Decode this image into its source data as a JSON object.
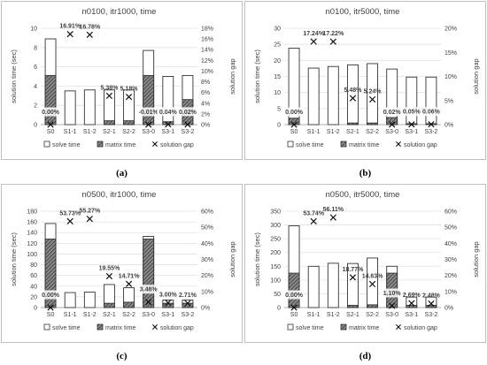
{
  "colors": {
    "bar_stroke": "#333333",
    "matrix_fill": "#5a5a5a",
    "grid": "#e2e2e2",
    "frame": "#bfbfbf",
    "text": "#404040",
    "label": "#404040"
  },
  "legend_labels": [
    "solve time",
    "matrix time",
    "solution gap"
  ],
  "chart_data": [
    {
      "type": "bar",
      "title": "n0100, itr1000, time",
      "caption": "(a)",
      "ylabel": "solution time (sec)",
      "y2label": "solution gap",
      "categories": [
        "S0",
        "S1-1",
        "S1-2",
        "S2-1",
        "S2-2",
        "S3-0",
        "S3-1",
        "S3-2"
      ],
      "ylim": [
        0,
        10
      ],
      "yticks": [
        0,
        2,
        4,
        6,
        8,
        10
      ],
      "y2lim": [
        0,
        18
      ],
      "y2ticks": [
        0,
        2,
        4,
        6,
        8,
        10,
        12,
        14,
        16,
        18
      ],
      "y2suffix": "%",
      "series": [
        {
          "name": "solve time",
          "values": [
            8.9,
            3.5,
            3.6,
            3.6,
            3.6,
            7.7,
            5.0,
            5.1
          ]
        },
        {
          "name": "matrix time",
          "values": [
            5.1,
            0,
            0,
            0.4,
            0.4,
            5.1,
            0.3,
            2.6
          ]
        },
        {
          "name": "solution gap",
          "values": [
            0.0,
            16.91,
            16.78,
            5.38,
            5.18,
            -0.01,
            0.04,
            0.02
          ]
        }
      ],
      "gap_labels": [
        "0.00%",
        "16.91%",
        "16.78%",
        "5.38%",
        "5.18%",
        "-0.01%",
        "0.04%",
        "0.02%"
      ],
      "label_mode": [
        1,
        0,
        0,
        0,
        0,
        1,
        1,
        1
      ]
    },
    {
      "type": "bar",
      "title": "n0100, itr5000, time",
      "caption": "(b)",
      "ylabel": "solution time (sec)",
      "y2label": "solution gap",
      "categories": [
        "S0",
        "S1-1",
        "S1-2",
        "S2-1",
        "S2-2",
        "S3-0",
        "S3-1",
        "S3-2"
      ],
      "ylim": [
        0,
        30
      ],
      "yticks": [
        0,
        5,
        10,
        15,
        20,
        25,
        30
      ],
      "y2lim": [
        0,
        20
      ],
      "y2ticks": [
        0,
        5,
        10,
        15,
        20
      ],
      "y2suffix": "%",
      "series": [
        {
          "name": "solve time",
          "values": [
            23.8,
            17.6,
            18.1,
            18.6,
            19.0,
            17.3,
            14.8,
            14.8
          ]
        },
        {
          "name": "matrix time",
          "values": [
            2.0,
            0,
            0,
            0.5,
            0.5,
            2.2,
            0.3,
            0.3
          ]
        },
        {
          "name": "solution gap",
          "values": [
            0.0,
            17.24,
            17.22,
            5.48,
            5.24,
            0.02,
            0.05,
            0.06
          ]
        }
      ],
      "gap_labels": [
        "0.00%",
        "17.24%",
        "17.22%",
        "5.48%",
        "5.24%",
        "0.02%",
        "0.05%",
        "0.06%"
      ],
      "label_mode": [
        1,
        0,
        0,
        0,
        0,
        1,
        1,
        1
      ]
    },
    {
      "type": "bar",
      "title": "n0500, itr1000, time",
      "caption": "(c)",
      "ylabel": "solution time (sec)",
      "y2label": "solution gap",
      "categories": [
        "S0",
        "S1-1",
        "S1-2",
        "S2-1",
        "S2-2",
        "S3-0",
        "S3-1",
        "S3-2"
      ],
      "ylim": [
        0,
        180
      ],
      "yticks": [
        0,
        20,
        40,
        60,
        80,
        100,
        120,
        140,
        160,
        180
      ],
      "y2lim": [
        0,
        60
      ],
      "y2ticks": [
        0,
        10,
        20,
        30,
        40,
        50,
        60
      ],
      "y2suffix": "%",
      "series": [
        {
          "name": "solve time",
          "values": [
            157,
            28,
            29,
            43,
            37,
            133,
            14,
            14
          ]
        },
        {
          "name": "matrix time",
          "values": [
            128,
            0,
            0,
            8,
            10,
            128,
            8,
            8
          ]
        },
        {
          "name": "solution gap",
          "values": [
            0.0,
            53.73,
            55.27,
            19.55,
            14.71,
            3.46,
            3.0,
            2.71
          ]
        }
      ],
      "gap_labels": [
        "0.00%",
        "53.73%",
        "55.27%",
        "19.55%",
        "14.71%",
        "3.46%",
        "3.00%",
        "2.71%"
      ],
      "label_mode": [
        1,
        0,
        0,
        0,
        0,
        1,
        0,
        0
      ]
    },
    {
      "type": "bar",
      "title": "n0500, itr5000, time",
      "caption": "(d)",
      "ylabel": "solution time (sec)",
      "y2label": "solution gap",
      "categories": [
        "S0",
        "S1-1",
        "S1-2",
        "S2-1",
        "S2-2",
        "S3-0",
        "S3-1",
        "S3-2"
      ],
      "ylim": [
        0,
        350
      ],
      "yticks": [
        0,
        50,
        100,
        150,
        200,
        250,
        300,
        350
      ],
      "y2lim": [
        0,
        60
      ],
      "y2ticks": [
        0,
        10,
        20,
        30,
        40,
        50,
        60
      ],
      "y2suffix": "%",
      "series": [
        {
          "name": "solve time",
          "values": [
            297,
            150,
            161,
            160,
            180,
            150,
            38,
            38
          ]
        },
        {
          "name": "matrix time",
          "values": [
            125,
            0,
            0,
            8,
            10,
            125,
            8,
            8
          ]
        },
        {
          "name": "solution gap",
          "values": [
            0.0,
            53.74,
            56.11,
            18.77,
            14.63,
            1.1,
            2.69,
            2.48
          ]
        }
      ],
      "gap_labels": [
        "0.00%",
        "53.74%",
        "56.11%",
        "18.77%",
        "14.63%",
        "1.10%",
        "2.69%",
        "2.48%"
      ],
      "label_mode": [
        1,
        0,
        0,
        0,
        0,
        1,
        0,
        0
      ]
    }
  ]
}
